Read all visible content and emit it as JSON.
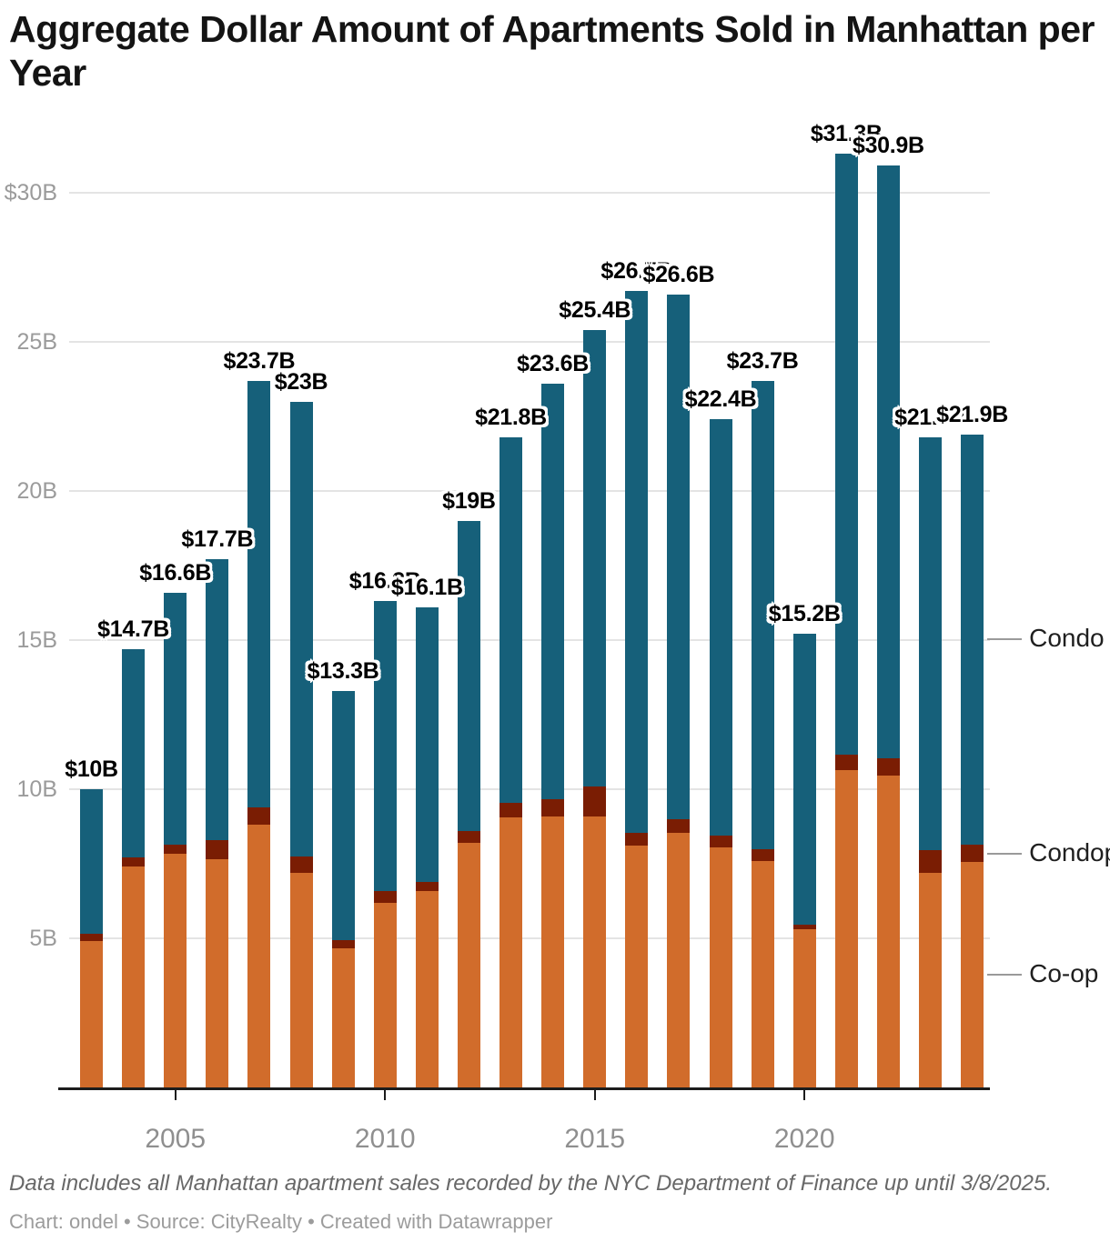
{
  "header": {
    "title": "Aggregate Dollar Amount of Apartments Sold in Manhattan per Year"
  },
  "footer": {
    "note": "Data includes all Manhattan apartment sales recorded by the NYC Department of Finance up until 3/8/2025.",
    "byline": "Chart: ondel • Source: CityRealty • Created with Datawrapper"
  },
  "colors": {
    "coop": "#d16c2b",
    "condop": "#7a1d03",
    "condo": "#16607a",
    "grid": "#e4e4e4",
    "axis": "#1c1c1c",
    "axis_label": "#9b9b9b",
    "year_label": "#8f8f8f"
  },
  "chart_data": {
    "type": "bar",
    "stacked": true,
    "title": "Aggregate Dollar Amount of Apartments Sold in Manhattan per Year",
    "xlabel": "",
    "ylabel": "",
    "unit": "billions of dollars",
    "x": [
      2003,
      2004,
      2005,
      2006,
      2007,
      2008,
      2009,
      2010,
      2011,
      2012,
      2013,
      2014,
      2015,
      2016,
      2017,
      2018,
      2019,
      2020,
      2021,
      2022,
      2023,
      2024
    ],
    "series": [
      {
        "name": "Co-op",
        "color": "#d16c2b",
        "values": [
          4.9,
          7.4,
          7.85,
          7.65,
          8.8,
          7.2,
          4.65,
          6.2,
          6.6,
          8.2,
          9.05,
          9.1,
          9.1,
          8.1,
          8.55,
          8.05,
          7.6,
          5.3,
          10.65,
          10.45,
          7.2,
          7.55
        ]
      },
      {
        "name": "Condop",
        "color": "#7a1d03",
        "values": [
          0.25,
          0.3,
          0.3,
          0.65,
          0.6,
          0.55,
          0.3,
          0.4,
          0.3,
          0.4,
          0.5,
          0.55,
          1.0,
          0.45,
          0.45,
          0.4,
          0.4,
          0.15,
          0.5,
          0.6,
          0.75,
          0.6
        ]
      },
      {
        "name": "Condo",
        "color": "#16607a",
        "values": [
          4.85,
          7.0,
          8.45,
          9.4,
          14.3,
          15.25,
          8.35,
          9.7,
          9.2,
          10.4,
          12.25,
          13.95,
          15.3,
          18.15,
          17.6,
          13.95,
          15.7,
          9.75,
          20.15,
          19.85,
          13.85,
          13.75
        ]
      }
    ],
    "totals": [
      10,
      14.7,
      16.6,
      17.7,
      23.7,
      23,
      13.3,
      16.3,
      16.1,
      19,
      21.8,
      23.6,
      25.4,
      26.7,
      26.6,
      22.4,
      23.7,
      15.2,
      31.3,
      30.9,
      21.8,
      21.9
    ],
    "total_labels": [
      "$10B",
      "$14.7B",
      "$16.6B",
      "$17.7B",
      "$23.7B",
      "$23B",
      "$13.3B",
      "$16.3B",
      "$16.1B",
      "$19B",
      "$21.8B",
      "$23.6B",
      "$25.4B",
      "$26.7B",
      "$26.6B",
      "$22.4B",
      "$23.7B",
      "$15.2B",
      "$31.3B",
      "$30.9B",
      "$21.8B",
      "$21.9B"
    ],
    "y_axis": {
      "tick_values": [
        30,
        25,
        20,
        15,
        10,
        5
      ],
      "tick_labels": [
        "$30B",
        "25B",
        "20B",
        "15B",
        "10B",
        "5B"
      ],
      "range": [
        0,
        32.5
      ]
    },
    "x_axis": {
      "tick_values": [
        2005,
        2010,
        2015,
        2020
      ],
      "tick_labels": [
        "2005",
        "2010",
        "2015",
        "2020"
      ]
    },
    "legend": {
      "position": "right",
      "entries": [
        "Condo",
        "Condop",
        "Co-op"
      ]
    },
    "grid": true
  }
}
